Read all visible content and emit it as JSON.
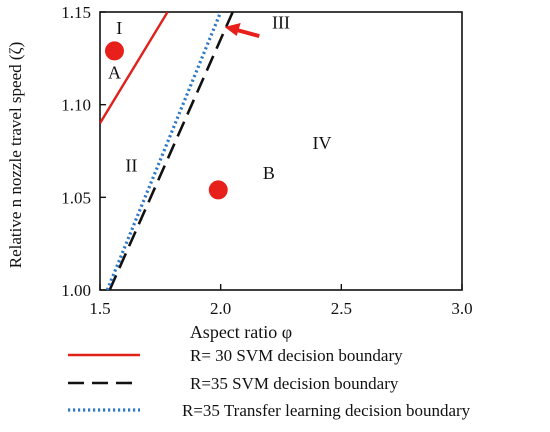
{
  "chart_data": {
    "type": "line",
    "xlabel": "Aspect ratio φ",
    "ylabel": "Relative n nozzle travel speed (ζ)",
    "xlim": [
      1.5,
      3.0
    ],
    "ylim": [
      1.0,
      1.15
    ],
    "xticks": [
      "1.5",
      "2.0",
      "2.5",
      "3.0"
    ],
    "yticks": [
      "1.00",
      "1.05",
      "1.10",
      "1.15"
    ],
    "grid": false,
    "legend_position": "bottom",
    "series": [
      {
        "name": "R= 30 SVM decision boundary",
        "color": "#e0201b",
        "style": "solid",
        "points": [
          [
            1.5,
            1.09
          ],
          [
            1.78,
            1.15
          ]
        ]
      },
      {
        "name": "R=35 SVM decision boundary",
        "color": "#111111",
        "style": "dashed",
        "points": [
          [
            1.54,
            1.0
          ],
          [
            2.05,
            1.15
          ]
        ]
      },
      {
        "name": "R=35 Transfer learning decision boundary",
        "color": "#2f78c4",
        "style": "dotted",
        "points": [
          [
            1.53,
            1.0
          ],
          [
            2.0,
            1.15
          ]
        ]
      }
    ],
    "points": [
      {
        "x": 1.56,
        "y": 1.129,
        "color": "#e8201b"
      },
      {
        "x": 1.99,
        "y": 1.054,
        "color": "#e8201b"
      }
    ],
    "annotations": [
      {
        "text": "I",
        "x": 1.58,
        "y": 1.138
      },
      {
        "text": "A",
        "x": 1.56,
        "y": 1.114
      },
      {
        "text": "II",
        "x": 1.63,
        "y": 1.064
      },
      {
        "text": "B",
        "x": 2.2,
        "y": 1.06
      },
      {
        "text": "IV",
        "x": 2.42,
        "y": 1.076
      },
      {
        "text": "III",
        "x": 2.25,
        "y": 1.141
      }
    ],
    "arrow": {
      "label": "III",
      "to_x": 2.0,
      "to_y": 1.143,
      "color": "#e8201b"
    }
  }
}
